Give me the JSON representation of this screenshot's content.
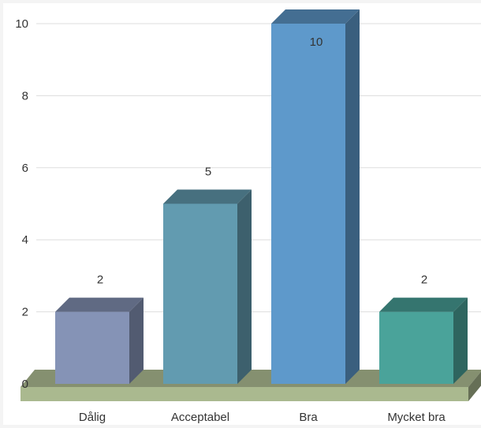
{
  "chart_data": {
    "type": "bar",
    "categories": [
      "Dålig",
      "Acceptabel",
      "Bra",
      "Mycket bra"
    ],
    "values": [
      2,
      5,
      10,
      2
    ],
    "data_labels": [
      "2",
      "5",
      "10",
      "2"
    ],
    "title": "",
    "xlabel": "",
    "ylabel": "",
    "ylim": [
      0,
      10
    ],
    "yticks": [
      "0",
      "2",
      "4",
      "6",
      "8",
      "10"
    ],
    "grid": true,
    "style": "3d",
    "colors": {
      "bars": [
        "#8593b6",
        "#629bb0",
        "#5e99cb",
        "#4aa39a"
      ],
      "floor": "#aab98f",
      "gridline": "#dddddd"
    }
  }
}
